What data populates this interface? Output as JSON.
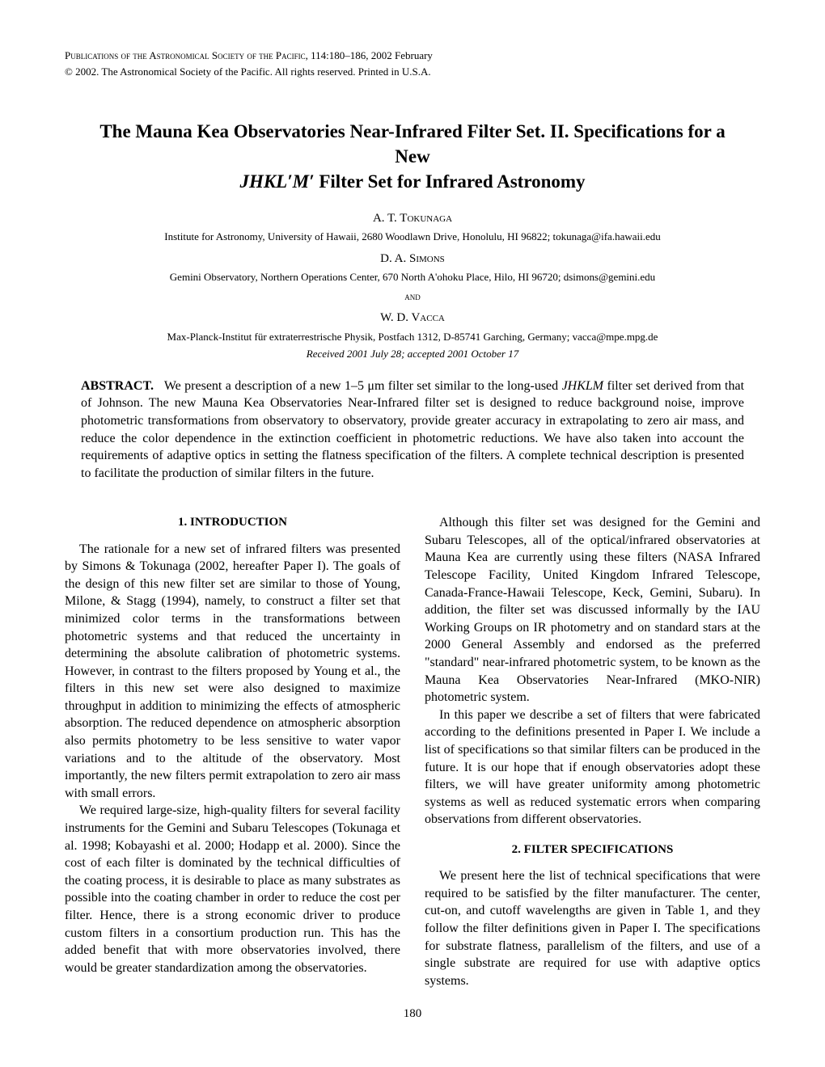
{
  "header": {
    "journal": "Publications of the Astronomical Society of the Pacific",
    "volume_pages": "114:180–186, 2002 February",
    "copyright": "© 2002. The Astronomical Society of the Pacific. All rights reserved. Printed in U.S.A."
  },
  "title_line1": "The Mauna Kea Observatories Near-Infrared Filter Set. II. Specifications for a New",
  "title_line2": "JHKL′M′ Filter Set for Infrared Astronomy",
  "authors": [
    {
      "name": "A. T. Tokunaga",
      "affiliation": "Institute for Astronomy, University of Hawaii, 2680 Woodlawn Drive, Honolulu, HI 96822; tokunaga@ifa.hawaii.edu"
    },
    {
      "name": "D. A. Simons",
      "affiliation": "Gemini Observatory, Northern Operations Center, 670 North A'ohoku Place, Hilo, HI 96720; dsimons@gemini.edu"
    },
    {
      "name": "W. D. Vacca",
      "affiliation": "Max-Planck-Institut für extraterrestrische Physik, Postfach 1312, D-85741 Garching, Germany; vacca@mpe.mpg.de"
    }
  ],
  "and_text": "and",
  "received": "Received 2001 July 28; accepted 2001 October 17",
  "abstract": {
    "label": "ABSTRACT.",
    "text": "We present a description of a new 1–5 μm filter set similar to the long-used JHKLM filter set derived from that of Johnson. The new Mauna Kea Observatories Near-Infrared filter set is designed to reduce background noise, improve photometric transformations from observatory to observatory, provide greater accuracy in extrapolating to zero air mass, and reduce the color dependence in the extinction coefficient in photometric reductions. We have also taken into account the requirements of adaptive optics in setting the flatness specification of the filters. A complete technical description is presented to facilitate the production of similar filters in the future."
  },
  "sections": {
    "intro": {
      "heading": "1. INTRODUCTION",
      "p1": "The rationale for a new set of infrared filters was presented by Simons & Tokunaga (2002, hereafter Paper I). The goals of the design of this new filter set are similar to those of Young, Milone, & Stagg (1994), namely, to construct a filter set that minimized color terms in the transformations between photometric systems and that reduced the uncertainty in determining the absolute calibration of photometric systems. However, in contrast to the filters proposed by Young et al., the filters in this new set were also designed to maximize throughput in addition to minimizing the effects of atmospheric absorption. The reduced dependence on atmospheric absorption also permits photometry to be less sensitive to water vapor variations and to the altitude of the observatory. Most importantly, the new filters permit extrapolation to zero air mass with small errors.",
      "p2": "We required large-size, high-quality filters for several facility instruments for the Gemini and Subaru Telescopes (Tokunaga et al. 1998; Kobayashi et al. 2000; Hodapp et al. 2000). Since the cost of each filter is dominated by the technical difficulties of the coating process, it is desirable to place as many substrates as possible into the coating chamber in order to reduce the cost per filter. Hence, there is a strong economic driver to produce custom filters in a consortium production run. This has the added benefit that with more observatories involved, there would be greater standardization among the observatories.",
      "p3": "Although this filter set was designed for the Gemini and Subaru Telescopes, all of the optical/infrared observatories at Mauna Kea are currently using these filters (NASA Infrared Telescope Facility, United Kingdom Infrared Telescope, Canada-France-Hawaii Telescope, Keck, Gemini, Subaru). In addition, the filter set was discussed informally by the IAU Working Groups on IR photometry and on standard stars at the 2000 General Assembly and endorsed as the preferred \"standard\" near-infrared photometric system, to be known as the Mauna Kea Observatories Near-Infrared (MKO-NIR) photometric system.",
      "p4": "In this paper we describe a set of filters that were fabricated according to the definitions presented in Paper I. We include a list of specifications so that similar filters can be produced in the future. It is our hope that if enough observatories adopt these filters, we will have greater uniformity among photometric systems as well as reduced systematic errors when comparing observations from different observatories."
    },
    "filter_spec": {
      "heading": "2. FILTER SPECIFICATIONS",
      "p1": "We present here the list of technical specifications that were required to be satisfied by the filter manufacturer. The center, cut-on, and cutoff wavelengths are given in Table 1, and they follow the filter definitions given in Paper I. The specifications for substrate flatness, parallelism of the filters, and use of a single substrate are required for use with adaptive optics systems."
    }
  },
  "page_number": "180"
}
